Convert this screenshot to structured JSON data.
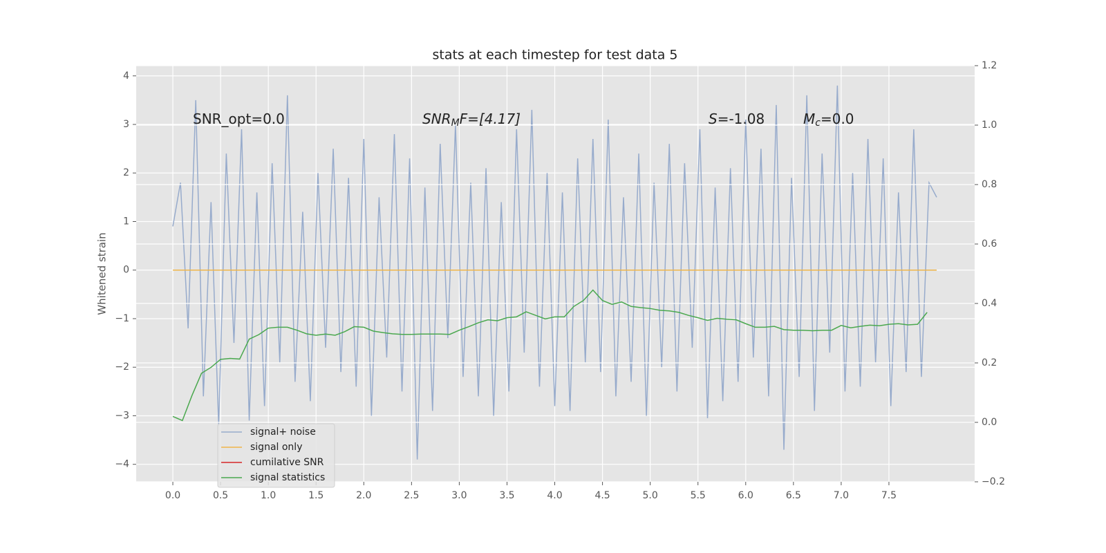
{
  "chart_data": {
    "type": "line",
    "title": "stats at each timestep for test data 5",
    "ylabel": "Whitened strain",
    "annotations": [
      [
        "SNR_opt=0.0"
      ],
      [
        "SNR",
        "M",
        "F=[4.17]"
      ],
      [
        "S",
        "=-1.08"
      ],
      [
        "M",
        "c",
        "=0.0"
      ]
    ],
    "xlim": [
      -0.384,
      8.398
    ],
    "ylim": [
      -4.36,
      4.21
    ],
    "y2lim": [
      -0.2,
      1.2
    ],
    "xticks": [
      {
        "value": 0,
        "label": "0.0"
      },
      0.5,
      {
        "value": 1,
        "label": "1.0"
      },
      1.5,
      {
        "value": 2,
        "label": "2.0"
      },
      2.5,
      {
        "value": 3,
        "label": "3.0"
      },
      3.5,
      {
        "value": 4,
        "label": "4.0"
      },
      4.5,
      {
        "value": 5,
        "label": "5.0"
      },
      5.5,
      {
        "value": 6,
        "label": "6.0"
      },
      6.5,
      {
        "value": 7,
        "label": "7.0"
      },
      7.5
    ],
    "yticks": [
      {
        "value": -4,
        "label": "−4"
      },
      {
        "value": -3,
        "label": "−3"
      },
      {
        "value": -2,
        "label": "−2"
      },
      {
        "value": -1,
        "label": "−1"
      },
      0,
      1,
      2,
      3,
      4
    ],
    "y2ticks": [
      {
        "value": -0.2,
        "label": "−0.2"
      },
      {
        "value": 0,
        "label": "0.0"
      },
      0.2,
      0.4,
      0.6,
      0.8,
      {
        "value": 1,
        "label": "1.0"
      },
      1.2
    ],
    "grid": true,
    "legend": "lower left",
    "series": [
      {
        "name": "signal+ noise",
        "color": "#97abcc",
        "x": [
          0,
          0.08,
          0.16,
          0.24,
          0.32,
          0.4,
          0.48,
          0.56,
          0.64,
          0.72,
          0.8,
          0.88,
          0.96,
          1.04,
          1.12,
          1.2,
          1.28,
          1.36,
          1.44,
          1.52,
          1.6,
          1.68,
          1.76,
          1.84,
          1.92,
          2.0,
          2.08,
          2.16,
          2.24,
          2.32,
          2.4,
          2.48,
          2.56,
          2.64,
          2.72,
          2.8,
          2.88,
          2.96,
          3.04,
          3.12,
          3.2,
          3.28,
          3.36,
          3.44,
          3.52,
          3.6,
          3.68,
          3.76,
          3.84,
          3.92,
          4.0,
          4.08,
          4.16,
          4.24,
          4.32,
          4.4,
          4.48,
          4.56,
          4.64,
          4.72,
          4.8,
          4.88,
          4.96,
          5.04,
          5.12,
          5.2,
          5.28,
          5.36,
          5.44,
          5.52,
          5.6,
          5.68,
          5.76,
          5.84,
          5.92,
          6.0,
          6.08,
          6.16,
          6.24,
          6.32,
          6.4,
          6.48,
          6.56,
          6.64,
          6.72,
          6.8,
          6.88,
          6.96,
          7.04,
          7.12,
          7.2,
          7.28,
          7.36,
          7.44,
          7.52,
          7.6,
          7.68,
          7.76,
          7.84,
          7.92,
          8.0
        ],
        "values": [
          0.9,
          1.8,
          -1.2,
          3.5,
          -2.6,
          1.4,
          -3.2,
          2.4,
          -1.5,
          2.9,
          -3.1,
          1.6,
          -2.8,
          2.2,
          -1.9,
          3.6,
          -2.3,
          1.2,
          -2.7,
          2.0,
          -1.6,
          2.5,
          -2.1,
          1.9,
          -2.4,
          2.7,
          -3.0,
          1.5,
          -1.8,
          2.8,
          -2.5,
          2.3,
          -3.9,
          1.7,
          -2.9,
          2.6,
          -1.4,
          3.0,
          -2.2,
          1.8,
          -2.6,
          2.1,
          -3.0,
          1.4,
          -2.5,
          2.9,
          -1.7,
          3.3,
          -2.4,
          2.0,
          -2.8,
          1.6,
          -2.9,
          2.3,
          -1.9,
          2.7,
          -2.1,
          3.1,
          -2.6,
          1.5,
          -2.3,
          2.4,
          -3.0,
          1.8,
          -2.0,
          2.6,
          -2.5,
          2.2,
          -1.6,
          2.9,
          -3.05,
          1.7,
          -2.7,
          2.1,
          -2.3,
          3.1,
          -1.8,
          2.5,
          -2.6,
          3.4,
          -3.7,
          1.9,
          -2.2,
          3.6,
          -2.9,
          2.4,
          -1.7,
          3.8,
          -2.5,
          2.0,
          -2.4,
          2.7,
          -1.9,
          2.3,
          -2.8,
          1.6,
          -2.1,
          2.9,
          -2.2,
          1.8,
          1.5
        ]
      },
      {
        "name": "signal only",
        "color": "#f0b548",
        "x": [
          0,
          8.0
        ],
        "values": [
          0,
          0
        ]
      },
      {
        "name": "cumilative SNR",
        "color": "#d62728",
        "x": [
          0,
          8.0
        ],
        "values": [
          null,
          null
        ]
      },
      {
        "name": "signal statistics",
        "color": "#4aa84e",
        "axis": "y2",
        "x": [
          0,
          0.1,
          0.2,
          0.3,
          0.4,
          0.5,
          0.6,
          0.7,
          0.8,
          0.9,
          1.0,
          1.1,
          1.2,
          1.3,
          1.4,
          1.5,
          1.6,
          1.7,
          1.8,
          1.9,
          2.0,
          2.1,
          2.2,
          2.3,
          2.4,
          2.5,
          2.6,
          2.7,
          2.8,
          2.9,
          3.0,
          3.1,
          3.2,
          3.3,
          3.4,
          3.5,
          3.6,
          3.7,
          3.8,
          3.9,
          4.0,
          4.1,
          4.2,
          4.3,
          4.4,
          4.5,
          4.6,
          4.7,
          4.8,
          4.9,
          5.0,
          5.1,
          5.2,
          5.3,
          5.4,
          5.5,
          5.6,
          5.7,
          5.8,
          5.9,
          6.0,
          6.1,
          6.2,
          6.3,
          6.4,
          6.5,
          6.6,
          6.7,
          6.8,
          6.9,
          7.0,
          7.1,
          7.2,
          7.3,
          7.4,
          7.5,
          7.6,
          7.7,
          7.8,
          7.9
        ],
        "values": [
          0.02,
          0.006,
          0.09,
          0.165,
          0.185,
          0.212,
          0.215,
          0.213,
          0.28,
          0.295,
          0.317,
          0.32,
          0.32,
          0.31,
          0.298,
          0.293,
          0.297,
          0.293,
          0.305,
          0.322,
          0.32,
          0.307,
          0.302,
          0.298,
          0.296,
          0.296,
          0.297,
          0.297,
          0.297,
          0.296,
          0.31,
          0.322,
          0.335,
          0.345,
          0.342,
          0.352,
          0.355,
          0.372,
          0.36,
          0.348,
          0.355,
          0.355,
          0.39,
          0.41,
          0.445,
          0.41,
          0.397,
          0.405,
          0.39,
          0.386,
          0.383,
          0.377,
          0.375,
          0.37,
          0.36,
          0.352,
          0.343,
          0.35,
          0.347,
          0.345,
          0.332,
          0.32,
          0.32,
          0.323,
          0.312,
          0.31,
          0.31,
          0.308,
          0.31,
          0.31,
          0.326,
          0.318,
          0.323,
          0.327,
          0.325,
          0.33,
          0.332,
          0.328,
          0.33,
          0.37
        ]
      }
    ]
  }
}
